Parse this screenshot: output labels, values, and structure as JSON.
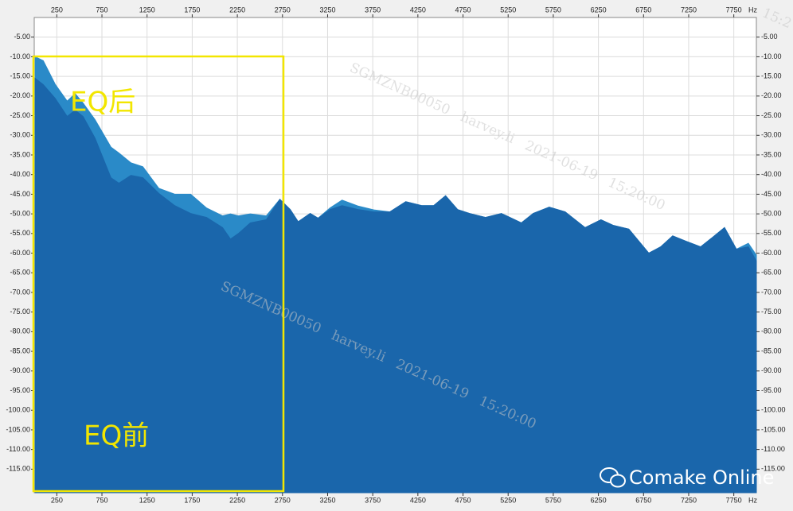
{
  "chart_data": {
    "type": "area",
    "x_unit": "Hz",
    "x": [
      11,
      100,
      232,
      365,
      453,
      541,
      673,
      850,
      938,
      1071,
      1203,
      1380,
      1556,
      1733,
      1909,
      2086,
      2174,
      2262,
      2394,
      2571,
      2721,
      2836,
      2924,
      3057,
      3145,
      3277,
      3410,
      3586,
      3763,
      3939,
      4116,
      4292,
      4425,
      4557,
      4690,
      4822,
      4999,
      5175,
      5396,
      5528,
      5705,
      5881,
      6102,
      6278,
      6411,
      6587,
      6808,
      6940,
      7073,
      7223,
      7382,
      7514,
      7647,
      7779,
      7911,
      8000
    ],
    "series": [
      {
        "name": "EQ后",
        "color": "#2a8ac8",
        "values": [
          -10.0,
          -11.0,
          -17.0,
          -21.3,
          -19.4,
          -21.8,
          -26.0,
          -33.0,
          -34.5,
          -37.0,
          -38.0,
          -43.5,
          -45.0,
          -45.0,
          -48.5,
          -50.5,
          -50.0,
          -50.5,
          -50.0,
          -50.5,
          -46.3,
          -48.9,
          -52.0,
          -49.9,
          -51.1,
          -48.5,
          -46.5,
          -48.0,
          -49.0,
          -49.5,
          -46.9,
          -47.9,
          -47.9,
          -45.4,
          -48.9,
          -49.9,
          -50.9,
          -49.9,
          -52.3,
          -49.9,
          -48.3,
          -49.5,
          -53.5,
          -51.5,
          -52.9,
          -53.9,
          -60.0,
          -58.4,
          -55.6,
          -57.0,
          -58.4,
          -56.0,
          -53.5,
          -59.0,
          -57.5,
          -60.5
        ]
      },
      {
        "name": "EQ前",
        "color": "#1a66ab",
        "values": [
          -15.5,
          -17.1,
          -20.6,
          -25.2,
          -23.6,
          -25.2,
          -30.7,
          -40.8,
          -42.2,
          -40.2,
          -40.8,
          -44.8,
          -47.9,
          -49.9,
          -50.9,
          -53.5,
          -56.4,
          -55.0,
          -52.3,
          -51.5,
          -46.3,
          -48.9,
          -52.0,
          -49.9,
          -51.1,
          -48.9,
          -47.9,
          -48.9,
          -49.5,
          -49.5,
          -46.9,
          -47.9,
          -47.9,
          -45.4,
          -48.9,
          -49.9,
          -50.9,
          -49.9,
          -52.3,
          -49.9,
          -48.3,
          -49.5,
          -53.5,
          -51.5,
          -52.9,
          -53.9,
          -60.0,
          -58.4,
          -55.6,
          -57.0,
          -58.4,
          -56.0,
          -53.5,
          -59.0,
          -58.4,
          -62.0
        ]
      }
    ],
    "xlim": [
      0,
      8000
    ],
    "xticks": [
      250,
      750,
      1250,
      1750,
      2250,
      2750,
      3250,
      3750,
      4250,
      4750,
      5250,
      5750,
      6250,
      6750,
      7250,
      7750
    ],
    "ylim": [
      -121,
      0
    ],
    "yticks": [
      {
        "value": -5,
        "label": "-5.00"
      },
      {
        "value": -10,
        "label": "-10.00"
      },
      {
        "value": -15,
        "label": "-15.00"
      },
      {
        "value": -20,
        "label": "-20.00"
      },
      {
        "value": -25,
        "label": "-25.00"
      },
      {
        "value": -30,
        "label": "-30.00"
      },
      {
        "value": -35,
        "label": "-35.00"
      },
      {
        "value": -40,
        "label": "-40.00"
      },
      {
        "value": -45,
        "label": "-45.00"
      },
      {
        "value": -50,
        "label": "-50.00"
      },
      {
        "value": -55,
        "label": "-55.00"
      },
      {
        "value": -60,
        "label": "-60.00"
      },
      {
        "value": -65,
        "label": "-65.00"
      },
      {
        "value": -70,
        "label": "-70.00"
      },
      {
        "value": -75,
        "label": "-75.00"
      },
      {
        "value": -80,
        "label": "-80.00"
      },
      {
        "value": -85,
        "label": "-85.00"
      },
      {
        "value": -90,
        "label": "-90.00"
      },
      {
        "value": -95,
        "label": "-95.00"
      },
      {
        "value": -100,
        "label": "-100.00"
      },
      {
        "value": -105,
        "label": "-105.00"
      },
      {
        "value": -110,
        "label": "-110.00"
      },
      {
        "value": -115,
        "label": "-115.00"
      }
    ],
    "grid": true,
    "watermark": "SGMZNB00050   harvey.li   2021-06-19   15:20:00",
    "watermark_fragment": "15:2",
    "logo": "Comake Online"
  }
}
